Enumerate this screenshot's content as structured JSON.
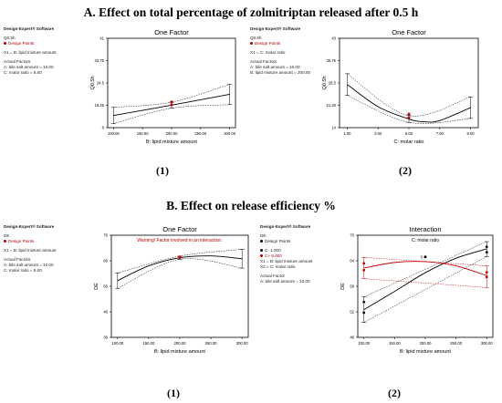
{
  "sections": {
    "a_title": "A. Effect on total percentage of zolmitriptan released after 0.5 h",
    "b_title": "B. Effect on release efficiency %"
  },
  "panel_labels": [
    "(1)",
    "(2)",
    "(1)",
    "(2)"
  ],
  "colors": {
    "points": "#c00000",
    "fit": "#000000",
    "frame": "#000000",
    "series2": "#c00000"
  },
  "info_panels": [
    {
      "software": "Design-Expert® Software",
      "response": "Q0.5h",
      "points_label": "Design Points",
      "x1": "X1 = B: lipid mixture amount",
      "actual_factors": "Actual Factors",
      "f1": "A: bile salt amount = 10.00",
      "f2": "C: molar ratio = 5.00"
    },
    {
      "software": "Design-Expert® Software",
      "response": "Q0.5h",
      "points_label": "Design Points",
      "x1": "X1 = C: molar ratio",
      "actual_factors": "Actual Factors",
      "f1": "A: bile salt amount = 10.00",
      "f2": "B: lipid mixture amount = 200.00"
    },
    {
      "software": "Design-Expert® Software",
      "response": "DE",
      "points_label": "Design Points",
      "x1": "X1 = B: lipid mixture amount",
      "actual_factors": "Actual Factors",
      "f1": "A: bile salt amount = 10.00",
      "f2": "C: molar ratio = 5.00"
    },
    {
      "software": "Design-Expert® Software",
      "response": "DE",
      "points_label": "Design Points",
      "legend1": "C- 1.000",
      "legend2": "C+ 9.000",
      "x1": "X1 = B: lipid mixture amount",
      "x2": "X2 = C: molar ratio",
      "actual_factors": "Actual Factor",
      "f1": "A: bile salt amount = 10.00"
    }
  ],
  "chart_data": [
    {
      "type": "line",
      "title": "One Factor",
      "xlabel": "B: lipid mixture amount",
      "ylabel": "Q0.5h",
      "xticks": [
        "100.00",
        "150.00",
        "200.00",
        "250.00",
        "300.00"
      ],
      "yticks": [
        "8",
        "16.25",
        "24.5",
        "32.75",
        "41"
      ],
      "xlim": [
        90,
        310
      ],
      "ylim": [
        8,
        41
      ],
      "fit": [
        [
          100,
          12.5
        ],
        [
          200,
          16.3
        ],
        [
          300,
          20.3
        ]
      ],
      "ci_upper": [
        [
          100,
          15.5
        ],
        [
          200,
          17.4
        ],
        [
          300,
          24
        ]
      ],
      "ci_lower": [
        [
          100,
          9.5
        ],
        [
          200,
          15.2
        ],
        [
          300,
          16.5
        ]
      ],
      "points": [
        [
          200,
          16.4
        ],
        [
          200,
          17.5
        ]
      ]
    },
    {
      "type": "line",
      "title": "One Factor",
      "xlabel": "C: molar ratio",
      "ylabel": "Q0.5h",
      "xticks": [
        "1.00",
        "3.00",
        "5.00",
        "7.00",
        "9.00"
      ],
      "yticks": [
        "14",
        "21.25",
        "28.5",
        "35.75",
        "43"
      ],
      "xlim": [
        0.5,
        9.5
      ],
      "ylim": [
        14,
        43
      ],
      "fit": [
        [
          1,
          28
        ],
        [
          3,
          20.8
        ],
        [
          5,
          16.8
        ],
        [
          6,
          15.9
        ],
        [
          7,
          16.3
        ],
        [
          9,
          20.5
        ]
      ],
      "ci_upper": [
        [
          1,
          31.5
        ],
        [
          5,
          17.9
        ],
        [
          9,
          24
        ]
      ],
      "ci_lower": [
        [
          1,
          24.5
        ],
        [
          5,
          15.7
        ],
        [
          9,
          17
        ]
      ],
      "points": [
        [
          5,
          17.2
        ],
        [
          5,
          18.4
        ]
      ]
    },
    {
      "type": "line",
      "title": "One Factor",
      "annotation": "Warning! Factor involved in an interaction.",
      "xlabel": "B: lipid mixture amount",
      "ylabel": "DE",
      "xticks": [
        "100.00",
        "150.00",
        "200.00",
        "250.00",
        "300.00"
      ],
      "yticks": [
        "36",
        "46",
        "56",
        "66",
        "76"
      ],
      "xlim": [
        90,
        310
      ],
      "ylim": [
        36,
        76
      ],
      "fit": [
        [
          100,
          58.2
        ],
        [
          150,
          64
        ],
        [
          200,
          67.2
        ],
        [
          250,
          67.9
        ],
        [
          300,
          66.8
        ]
      ],
      "ci_upper": [
        [
          100,
          61.2
        ],
        [
          200,
          67.8
        ],
        [
          300,
          70.5
        ]
      ],
      "ci_lower": [
        [
          100,
          55.2
        ],
        [
          200,
          66.6
        ],
        [
          300,
          63.1
        ]
      ],
      "points": [
        [
          200,
          67.2
        ],
        [
          200,
          67.5
        ]
      ]
    },
    {
      "type": "line",
      "title": "Interaction",
      "subtitle": "C: molar ratio",
      "xlabel": "B: lipid mixture amount",
      "ylabel": "DE",
      "xticks": [
        "100.00",
        "150.00",
        "200.00",
        "250.00",
        "300.00"
      ],
      "yticks": [
        "46",
        "52",
        "58",
        "64",
        "70"
      ],
      "xlim": [
        90,
        310
      ],
      "ylim": [
        46,
        70
      ],
      "annotation": "3",
      "series": [
        {
          "name": "C- 1.000",
          "fit": [
            [
              100,
              52.5
            ],
            [
              150,
              56.8
            ],
            [
              200,
              61.2
            ],
            [
              250,
              64.6
            ],
            [
              300,
              66.8
            ]
          ],
          "ci_upper": [
            [
              100,
              55.5
            ],
            [
              300,
              68.5
            ]
          ],
          "ci_lower": [
            [
              100,
              49.5
            ],
            [
              300,
              65
            ]
          ],
          "points": [
            [
              100,
              51.8
            ],
            [
              100,
              54.3
            ],
            [
              300,
              66
            ],
            [
              300,
              67.3
            ]
          ]
        },
        {
          "name": "C+ 9.000",
          "fit": [
            [
              100,
              62.3
            ],
            [
              150,
              63.6
            ],
            [
              200,
              63.8
            ],
            [
              250,
              62.8
            ],
            [
              300,
              60.5
            ]
          ],
          "ci_upper": [
            [
              100,
              64.8
            ],
            [
              300,
              62.8
            ]
          ],
          "ci_lower": [
            [
              100,
              59.8
            ],
            [
              300,
              57.7
            ]
          ],
          "points": [
            [
              100,
              61.8
            ],
            [
              100,
              63.4
            ],
            [
              300,
              60.2
            ],
            [
              300,
              61.3
            ]
          ]
        }
      ],
      "center_point": [
        200,
        64.9
      ]
    }
  ]
}
